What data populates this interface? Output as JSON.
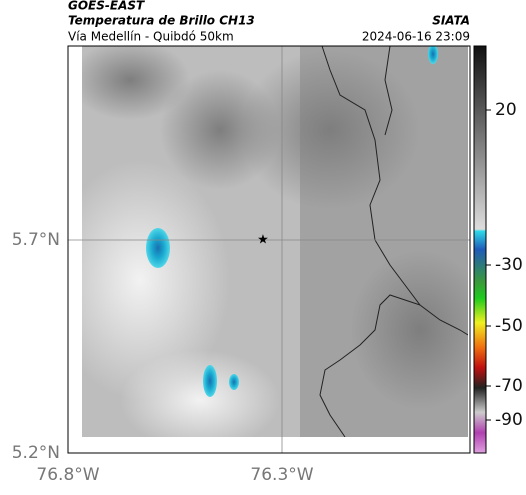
{
  "header": {
    "source": "GOES-EAST",
    "product": "Temperatura de Brillo CH13",
    "region": "Vía Medellín - Quibdó 50km",
    "agency": "SIATA",
    "timestamp": "2024-06-16 23:09"
  },
  "axes": {
    "lat_labels": [
      "5.7°N",
      "5.2°N"
    ],
    "lon_labels": [
      "76.8°W",
      "76.3°W"
    ]
  },
  "colorbar": {
    "ticks": [
      "20",
      "-30",
      "-50",
      "-70",
      "-90"
    ]
  }
}
